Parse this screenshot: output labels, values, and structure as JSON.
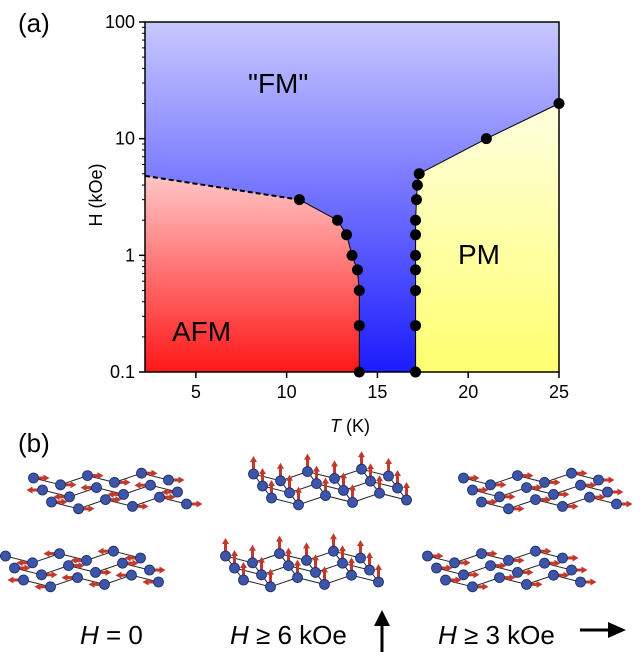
{
  "panel_a_label": "(a)",
  "panel_b_label": "(b)",
  "chart_data": {
    "type": "scatter",
    "title": "",
    "xlabel_italic": "T",
    "xlabel_unit": " (K)",
    "ylabel": "H (kOe)",
    "xlim": [
      2.2,
      25
    ],
    "ylim": [
      0.1,
      100
    ],
    "y_scale": "log",
    "x_ticks": [
      5,
      10,
      15,
      20,
      25
    ],
    "y_ticks": [
      0.1,
      1,
      10,
      100
    ],
    "y_tick_labels": [
      "0.1",
      "1",
      "10",
      "100"
    ],
    "grid": false,
    "legend": "none",
    "regions": [
      {
        "label": "\"FM\"",
        "color_top": "#c8c8ff",
        "color_bottom": "#1c1cff"
      },
      {
        "label": "AFM",
        "color_top": "#ffc6c6",
        "color_bottom": "#ff1818"
      },
      {
        "label": "PM",
        "color_top": "#ffffe0",
        "color_bottom": "#ffff70"
      }
    ],
    "series": [
      {
        "values": [
          [
            10.7,
            3.0
          ],
          [
            12.8,
            2.0
          ],
          [
            13.3,
            1.5
          ],
          [
            13.6,
            1.0
          ],
          [
            13.9,
            0.75
          ],
          [
            14.0,
            0.5
          ],
          [
            14.0,
            0.25
          ],
          [
            14.0,
            0.1
          ]
        ]
      },
      {
        "values": [
          [
            17.1,
            0.1
          ],
          [
            17.1,
            0.25
          ],
          [
            17.1,
            0.5
          ],
          [
            17.1,
            0.75
          ],
          [
            17.1,
            1.0
          ],
          [
            17.1,
            1.5
          ],
          [
            17.1,
            2.0
          ],
          [
            17.15,
            3.0
          ],
          [
            17.2,
            4.0
          ],
          [
            17.3,
            5.0
          ]
        ]
      },
      {
        "values": [
          [
            21.0,
            10.0
          ],
          [
            25.0,
            20.0
          ]
        ]
      }
    ],
    "dashed_boundary": [
      [
        2.2,
        4.8
      ],
      [
        10.7,
        3.0
      ]
    ]
  },
  "spin_configs": [
    {
      "caption_italic": "H",
      "caption_rest": " = 0",
      "arrow": "none"
    },
    {
      "caption_italic": "H",
      "caption_rest": " ≥ 6 kOe",
      "arrow": "up"
    },
    {
      "caption_italic": "H",
      "caption_rest": " ≥ 3 kOe",
      "arrow": "right"
    }
  ],
  "colors": {
    "afm_red": "#ff2020",
    "fm_blue": "#2020ff",
    "pm_yellow": "#ffff70",
    "atom": "#3d55a8",
    "spin_arrow": "#c0392b"
  }
}
